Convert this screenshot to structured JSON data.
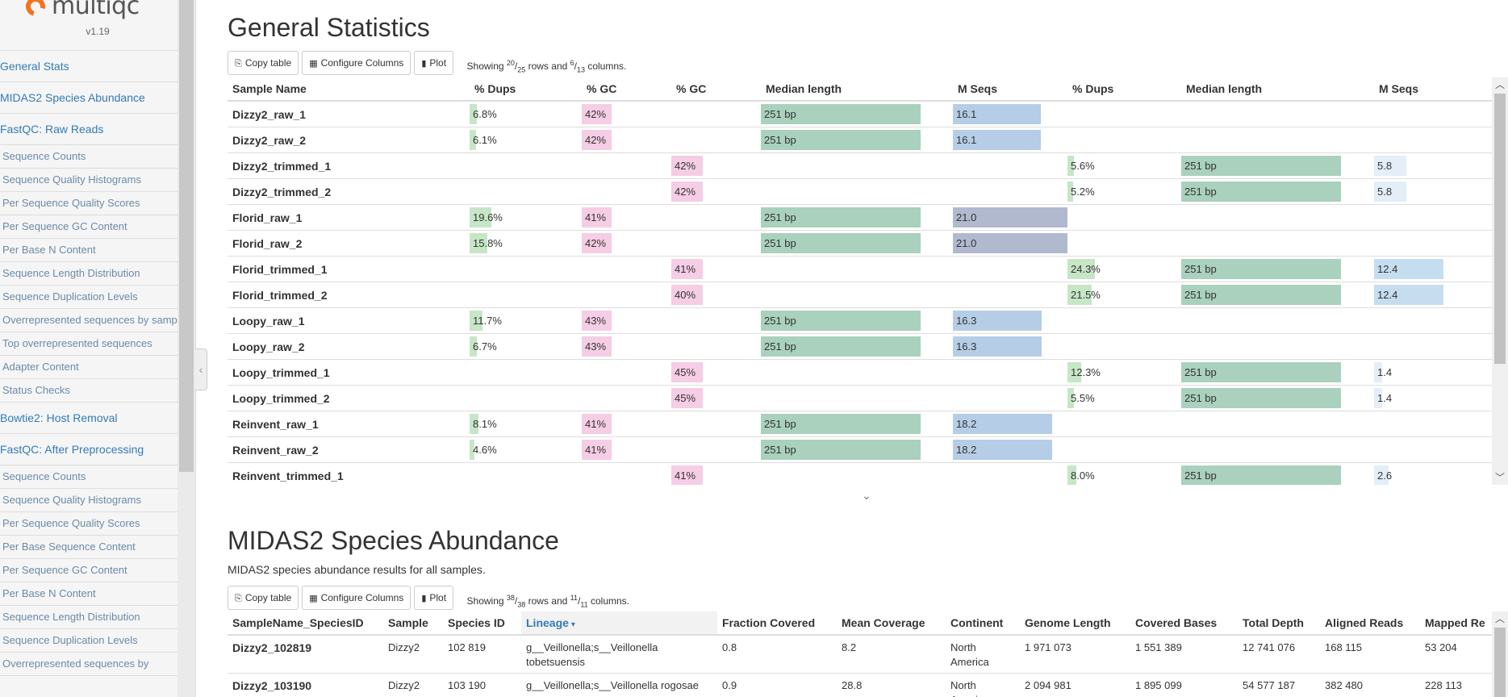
{
  "sidebar": {
    "logo_text": "multiqc",
    "version": "v1.19",
    "items": [
      {
        "label": "General Stats",
        "type": "top"
      },
      {
        "label": "MIDAS2 Species Abundance",
        "type": "top"
      },
      {
        "label": "FastQC: Raw Reads",
        "type": "top"
      },
      {
        "label": "Sequence Counts",
        "type": "sub"
      },
      {
        "label": "Sequence Quality Histograms",
        "type": "sub"
      },
      {
        "label": "Per Sequence Quality Scores",
        "type": "sub"
      },
      {
        "label": "Per Sequence GC Content",
        "type": "sub"
      },
      {
        "label": "Per Base N Content",
        "type": "sub"
      },
      {
        "label": "Sequence Length Distribution",
        "type": "sub"
      },
      {
        "label": "Sequence Duplication Levels",
        "type": "sub"
      },
      {
        "label": "Overrepresented sequences by sample",
        "type": "sub"
      },
      {
        "label": "Top overrepresented sequences",
        "type": "sub"
      },
      {
        "label": "Adapter Content",
        "type": "sub"
      },
      {
        "label": "Status Checks",
        "type": "sub"
      },
      {
        "label": "Bowtie2: Host Removal",
        "type": "top"
      },
      {
        "label": "FastQC: After Preprocessing",
        "type": "top"
      },
      {
        "label": "Sequence Counts",
        "type": "sub"
      },
      {
        "label": "Sequence Quality Histograms",
        "type": "sub"
      },
      {
        "label": "Per Sequence Quality Scores",
        "type": "sub"
      },
      {
        "label": "Per Base Sequence Content",
        "type": "sub"
      },
      {
        "label": "Per Sequence GC Content",
        "type": "sub"
      },
      {
        "label": "Per Base N Content",
        "type": "sub"
      },
      {
        "label": "Sequence Length Distribution",
        "type": "sub"
      },
      {
        "label": "Sequence Duplication Levels",
        "type": "sub"
      },
      {
        "label": "Overrepresented sequences by",
        "type": "sub"
      }
    ]
  },
  "general_stats": {
    "title": "General Statistics",
    "buttons": {
      "copy": "Copy table",
      "configure": "Configure Columns",
      "plot": "Plot"
    },
    "showing": {
      "prefix": "Showing ",
      "rows_shown": "20",
      "rows_total": "25",
      "mid": " rows and ",
      "cols_shown": "6",
      "cols_total": "13",
      "suffix": " columns."
    },
    "headers": [
      "Sample Name",
      "% Dups",
      "% GC",
      "% GC",
      "Median length",
      "M Seqs",
      "% Dups",
      "Median length",
      "M Seqs"
    ],
    "colors": {
      "dups": "#c6e6c6",
      "gc": "#f5cde4",
      "len": "#a9d1bd",
      "seqs_raw": "#b5cde6",
      "seqs_florid": "#b1b9cf",
      "seqs_trim": "#e3eef8",
      "seqs_florid_trim": "#c5ddef"
    },
    "rows": [
      {
        "name": "Dizzy2_raw_1",
        "dups1": "6.8%",
        "dups1_frac": 0.068,
        "gc1": "42%",
        "gc2": "",
        "len1": "251 bp",
        "seqs1": "16.1",
        "seqs1_frac": 0.766,
        "dups2": "",
        "dups2_frac": 0,
        "len2": "",
        "seqs2": "",
        "seqs2_frac": 0
      },
      {
        "name": "Dizzy2_raw_2",
        "dups1": "6.1%",
        "dups1_frac": 0.061,
        "gc1": "42%",
        "gc2": "",
        "len1": "251 bp",
        "seqs1": "16.1",
        "seqs1_frac": 0.766,
        "dups2": "",
        "dups2_frac": 0,
        "len2": "",
        "seqs2": "",
        "seqs2_frac": 0
      },
      {
        "name": "Dizzy2_trimmed_1",
        "dups1": "",
        "dups1_frac": 0,
        "gc1": "",
        "gc2": "42%",
        "len1": "",
        "seqs1": "",
        "seqs1_frac": 0,
        "dups2": "5.6%",
        "dups2_frac": 0.056,
        "len2": "251 bp",
        "seqs2": "5.8",
        "seqs2_frac": 0.276
      },
      {
        "name": "Dizzy2_trimmed_2",
        "dups1": "",
        "dups1_frac": 0,
        "gc1": "",
        "gc2": "42%",
        "len1": "",
        "seqs1": "",
        "seqs1_frac": 0,
        "dups2": "5.2%",
        "dups2_frac": 0.052,
        "len2": "251 bp",
        "seqs2": "5.8",
        "seqs2_frac": 0.276
      },
      {
        "name": "Florid_raw_1",
        "dups1": "19.6%",
        "dups1_frac": 0.196,
        "gc1": "41%",
        "gc2": "",
        "len1": "251 bp",
        "seqs1": "21.0",
        "seqs1_frac": 1.0,
        "dups2": "",
        "dups2_frac": 0,
        "len2": "",
        "seqs2": "",
        "seqs2_frac": 0
      },
      {
        "name": "Florid_raw_2",
        "dups1": "15.8%",
        "dups1_frac": 0.158,
        "gc1": "42%",
        "gc2": "",
        "len1": "251 bp",
        "seqs1": "21.0",
        "seqs1_frac": 1.0,
        "dups2": "",
        "dups2_frac": 0,
        "len2": "",
        "seqs2": "",
        "seqs2_frac": 0
      },
      {
        "name": "Florid_trimmed_1",
        "dups1": "",
        "dups1_frac": 0,
        "gc1": "",
        "gc2": "41%",
        "len1": "",
        "seqs1": "",
        "seqs1_frac": 0,
        "dups2": "24.3%",
        "dups2_frac": 0.243,
        "len2": "251 bp",
        "seqs2": "12.4",
        "seqs2_frac": 0.59
      },
      {
        "name": "Florid_trimmed_2",
        "dups1": "",
        "dups1_frac": 0,
        "gc1": "",
        "gc2": "40%",
        "len1": "",
        "seqs1": "",
        "seqs1_frac": 0,
        "dups2": "21.5%",
        "dups2_frac": 0.215,
        "len2": "251 bp",
        "seqs2": "12.4",
        "seqs2_frac": 0.59
      },
      {
        "name": "Loopy_raw_1",
        "dups1": "11.7%",
        "dups1_frac": 0.117,
        "gc1": "43%",
        "gc2": "",
        "len1": "251 bp",
        "seqs1": "16.3",
        "seqs1_frac": 0.776,
        "dups2": "",
        "dups2_frac": 0,
        "len2": "",
        "seqs2": "",
        "seqs2_frac": 0
      },
      {
        "name": "Loopy_raw_2",
        "dups1": "6.7%",
        "dups1_frac": 0.067,
        "gc1": "43%",
        "gc2": "",
        "len1": "251 bp",
        "seqs1": "16.3",
        "seqs1_frac": 0.776,
        "dups2": "",
        "dups2_frac": 0,
        "len2": "",
        "seqs2": "",
        "seqs2_frac": 0
      },
      {
        "name": "Loopy_trimmed_1",
        "dups1": "",
        "dups1_frac": 0,
        "gc1": "",
        "gc2": "45%",
        "len1": "",
        "seqs1": "",
        "seqs1_frac": 0,
        "dups2": "12.3%",
        "dups2_frac": 0.123,
        "len2": "251 bp",
        "seqs2": "1.4",
        "seqs2_frac": 0.067
      },
      {
        "name": "Loopy_trimmed_2",
        "dups1": "",
        "dups1_frac": 0,
        "gc1": "",
        "gc2": "45%",
        "len1": "",
        "seqs1": "",
        "seqs1_frac": 0,
        "dups2": "5.5%",
        "dups2_frac": 0.055,
        "len2": "251 bp",
        "seqs2": "1.4",
        "seqs2_frac": 0.067
      },
      {
        "name": "Reinvent_raw_1",
        "dups1": "8.1%",
        "dups1_frac": 0.081,
        "gc1": "41%",
        "gc2": "",
        "len1": "251 bp",
        "seqs1": "18.2",
        "seqs1_frac": 0.867,
        "dups2": "",
        "dups2_frac": 0,
        "len2": "",
        "seqs2": "",
        "seqs2_frac": 0
      },
      {
        "name": "Reinvent_raw_2",
        "dups1": "4.6%",
        "dups1_frac": 0.046,
        "gc1": "41%",
        "gc2": "",
        "len1": "251 bp",
        "seqs1": "18.2",
        "seqs1_frac": 0.867,
        "dups2": "",
        "dups2_frac": 0,
        "len2": "",
        "seqs2": "",
        "seqs2_frac": 0
      },
      {
        "name": "Reinvent_trimmed_1",
        "dups1": "",
        "dups1_frac": 0,
        "gc1": "",
        "gc2": "41%",
        "len1": "",
        "seqs1": "",
        "seqs1_frac": 0,
        "dups2": "8.0%",
        "dups2_frac": 0.08,
        "len2": "251 bp",
        "seqs2": "2.6",
        "seqs2_frac": 0.124
      }
    ]
  },
  "midas": {
    "title": "MIDAS2 Species Abundance",
    "description": "MIDAS2 species abundance results for all samples.",
    "buttons": {
      "copy": "Copy table",
      "configure": "Configure Columns",
      "plot": "Plot"
    },
    "showing": {
      "prefix": "Showing ",
      "rows_shown": "38",
      "rows_total": "38",
      "mid": " rows and ",
      "cols_shown": "11",
      "cols_total": "11",
      "suffix": " columns."
    },
    "headers": [
      "SampleName_SpeciesID",
      "Sample",
      "Species ID",
      "Lineage",
      "Fraction Covered",
      "Mean Coverage",
      "Continent",
      "Genome Length",
      "Covered Bases",
      "Total Depth",
      "Aligned Reads",
      "Mapped Re"
    ],
    "sort_arrow": "▾",
    "rows": [
      {
        "cells": [
          "Dizzy2_102819",
          "Dizzy2",
          "102 819",
          "g__Veillonella;s__Veillonella tobetsuensis",
          "0.8",
          "8.2",
          "North America",
          "1 971 073",
          "1 551 389",
          "12 741 076",
          "168 115",
          "53 204"
        ]
      },
      {
        "cells": [
          "Dizzy2_103190",
          "Dizzy2",
          "103 190",
          "g__Veillonella;s__Veillonella rogosae",
          "0.9",
          "28.8",
          "North America",
          "2 094 981",
          "1 895 099",
          "54 577 187",
          "382 480",
          "228 113"
        ]
      }
    ]
  }
}
